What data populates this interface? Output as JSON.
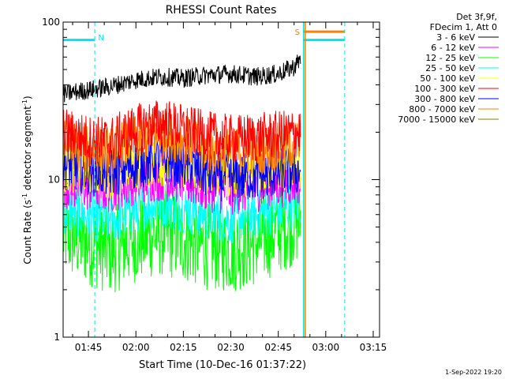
{
  "chart_data": {
    "type": "line",
    "title": "RHESSI Count Rates",
    "xlabel": "Start Time (10-Dec-16 01:37:22)",
    "ylabel_main": "Count Rate (s",
    "ylabel_sup": "-1",
    "ylabel_rest": " detector segment",
    "ylabel_sup2": "-1",
    "ylabel_end": ")",
    "yscale": "log",
    "xlim_minutes": [
      97,
      197
    ],
    "ylim": [
      1,
      100
    ],
    "x_ticks": [
      {
        "label": "01:45",
        "minutes": 105
      },
      {
        "label": "02:00",
        "minutes": 120
      },
      {
        "label": "02:15",
        "minutes": 135
      },
      {
        "label": "02:30",
        "minutes": 150
      },
      {
        "label": "02:45",
        "minutes": 165
      },
      {
        "label": "03:00",
        "minutes": 180
      },
      {
        "label": "03:15",
        "minutes": 195
      }
    ],
    "y_ticks": [
      {
        "label": "1",
        "value": 1
      },
      {
        "label": "10",
        "value": 10
      },
      {
        "label": "100",
        "value": 100
      }
    ],
    "legend_header": [
      "Det 3f,9f,",
      "FDecim 1, Att 0"
    ],
    "series": [
      {
        "name": "3 - 6 keV",
        "color": "#000000",
        "points": [
          [
            97,
            35
          ],
          [
            105,
            37
          ],
          [
            112,
            39
          ],
          [
            120,
            43
          ],
          [
            128,
            45
          ],
          [
            135,
            44
          ],
          [
            142,
            46
          ],
          [
            150,
            47
          ],
          [
            158,
            45
          ],
          [
            165,
            47
          ],
          [
            170,
            52
          ],
          [
            172,
            58
          ]
        ]
      },
      {
        "name": "6 - 12 keV",
        "color": "#ff00ff",
        "points": [
          [
            97,
            9.5
          ],
          [
            105,
            9
          ],
          [
            112,
            8.8
          ],
          [
            120,
            10
          ],
          [
            128,
            10.5
          ],
          [
            135,
            10
          ],
          [
            142,
            9
          ],
          [
            150,
            8.5
          ],
          [
            158,
            9
          ],
          [
            165,
            9.5
          ],
          [
            172,
            10
          ]
        ]
      },
      {
        "name": "12 - 25 keV",
        "color": "#00ff00",
        "points": [
          [
            97,
            4.5
          ],
          [
            105,
            4
          ],
          [
            112,
            3.5
          ],
          [
            120,
            4.2
          ],
          [
            128,
            4.6
          ],
          [
            135,
            4.2
          ],
          [
            142,
            3.8
          ],
          [
            150,
            3.6
          ],
          [
            158,
            4
          ],
          [
            165,
            4.8
          ],
          [
            172,
            5.6
          ]
        ]
      },
      {
        "name": "25 - 50 keV",
        "color": "#00ffff",
        "points": [
          [
            97,
            6.5
          ],
          [
            105,
            6
          ],
          [
            112,
            5.6
          ],
          [
            120,
            6.6
          ],
          [
            128,
            7.2
          ],
          [
            135,
            6.6
          ],
          [
            142,
            6
          ],
          [
            150,
            5.6
          ],
          [
            158,
            6
          ],
          [
            165,
            6.5
          ],
          [
            172,
            7.2
          ]
        ]
      },
      {
        "name": "50 - 100 keV",
        "color": "#ffff00",
        "points": [
          [
            97,
            12
          ],
          [
            105,
            11.5
          ],
          [
            112,
            11
          ],
          [
            120,
            12.5
          ],
          [
            128,
            13
          ],
          [
            135,
            12.5
          ],
          [
            142,
            11.5
          ],
          [
            150,
            11
          ],
          [
            158,
            11.5
          ],
          [
            165,
            12
          ],
          [
            172,
            12.5
          ]
        ]
      },
      {
        "name": "100 - 300 keV",
        "color": "#ff0000",
        "points": [
          [
            97,
            20
          ],
          [
            105,
            18
          ],
          [
            112,
            17.5
          ],
          [
            120,
            21
          ],
          [
            128,
            23
          ],
          [
            135,
            21
          ],
          [
            142,
            19
          ],
          [
            150,
            18
          ],
          [
            158,
            18.5
          ],
          [
            165,
            19
          ],
          [
            172,
            20
          ]
        ]
      },
      {
        "name": "300 - 800 keV",
        "color": "#0000ff",
        "points": [
          [
            97,
            12.5
          ],
          [
            105,
            11.5
          ],
          [
            112,
            11
          ],
          [
            120,
            12.5
          ],
          [
            128,
            13.5
          ],
          [
            135,
            12.5
          ],
          [
            142,
            11
          ],
          [
            150,
            10.2
          ],
          [
            158,
            10.5
          ],
          [
            165,
            11
          ],
          [
            172,
            11.5
          ]
        ]
      },
      {
        "name": "800 - 7000 keV",
        "color": "#ff8000",
        "points": [
          [
            97,
            17
          ],
          [
            105,
            15.5
          ],
          [
            112,
            15
          ],
          [
            120,
            18
          ],
          [
            128,
            19.5
          ],
          [
            135,
            18
          ],
          [
            142,
            16
          ],
          [
            150,
            15
          ],
          [
            158,
            15.5
          ],
          [
            165,
            16
          ],
          [
            172,
            17
          ]
        ]
      },
      {
        "name": "7000 - 15000 keV",
        "color": "#808000",
        "points": []
      }
    ],
    "markers": [
      {
        "label": "N",
        "color": "#00e5ee",
        "bar_x": [
          97,
          107
        ],
        "bar_y": 77,
        "dashed_x": 107
      },
      {
        "label": "S",
        "color": "#ff8000",
        "bar_x": [
          173,
          186
        ],
        "bar_y": 87,
        "dashed_x": null
      }
    ],
    "extra_lines": [
      {
        "color": "#00e5ee",
        "bar_x": [
          173,
          186
        ],
        "bar_y": 77,
        "dashed_x": 186
      },
      {
        "color": "#00e5ee",
        "solid_x": 173
      },
      {
        "color": "#ff8000",
        "solid_x": 173.5
      }
    ]
  },
  "footer": {
    "timestamp": "1-Sep-2022 19:20"
  }
}
